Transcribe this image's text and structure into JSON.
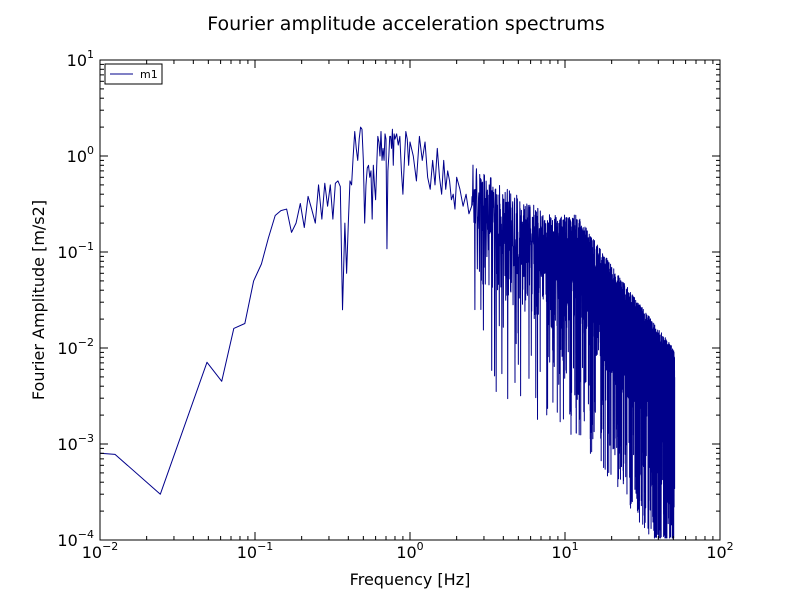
{
  "chart_data": {
    "type": "line",
    "title": "Fourier amplitude acceleration spectrums",
    "xlabel": "Frequency [Hz]",
    "ylabel": "Fourier Amplitude [m/s2]",
    "xscale": "log",
    "yscale": "log",
    "xlim": [
      0.01,
      100
    ],
    "ylim": [
      0.0001,
      10
    ],
    "x_ticks": [
      {
        "value": 0.01,
        "base": "10",
        "exp": "−2"
      },
      {
        "value": 0.1,
        "base": "10",
        "exp": "−1"
      },
      {
        "value": 1,
        "base": "10",
        "exp": "0"
      },
      {
        "value": 10,
        "base": "10",
        "exp": "1"
      },
      {
        "value": 100,
        "base": "10",
        "exp": "2"
      }
    ],
    "y_ticks": [
      {
        "value": 0.0001,
        "base": "10",
        "exp": "−4"
      },
      {
        "value": 0.001,
        "base": "10",
        "exp": "−3"
      },
      {
        "value": 0.01,
        "base": "10",
        "exp": "−2"
      },
      {
        "value": 0.1,
        "base": "10",
        "exp": "−1"
      },
      {
        "value": 1,
        "base": "10",
        "exp": "0"
      },
      {
        "value": 10,
        "base": "10",
        "exp": "1"
      }
    ],
    "grid": false,
    "legend_position": "top-left",
    "series": [
      {
        "name": "m1",
        "color": "#00008b",
        "x": [
          0.01,
          0.0125,
          0.0245,
          0.049,
          0.061,
          0.073,
          0.086,
          0.098,
          0.11,
          0.122,
          0.135,
          0.147,
          0.16,
          0.172,
          0.184,
          0.196,
          0.208,
          0.22,
          0.232,
          0.245,
          0.257,
          0.27,
          0.282,
          0.294,
          0.306,
          0.318,
          0.33,
          0.343,
          0.355,
          0.367,
          0.38,
          0.39,
          0.4,
          0.41,
          0.42,
          0.43,
          0.44,
          0.45,
          0.46,
          0.47,
          0.48,
          0.49,
          0.5,
          0.51,
          0.52,
          0.53,
          0.54,
          0.55,
          0.56,
          0.57,
          0.58,
          0.59,
          0.6,
          0.61,
          0.62,
          0.63,
          0.64,
          0.65,
          0.66,
          0.67,
          0.68,
          0.69,
          0.7,
          0.71,
          0.72,
          0.73,
          0.74,
          0.75,
          0.76,
          0.77,
          0.78,
          0.79,
          0.8,
          0.82,
          0.84,
          0.86,
          0.88,
          0.9,
          0.92,
          0.94,
          0.96,
          0.98,
          1.0,
          1.05,
          1.1,
          1.15,
          1.2,
          1.25,
          1.3,
          1.35,
          1.4,
          1.45,
          1.5,
          1.55,
          1.6,
          1.65,
          1.7,
          1.75,
          1.8,
          1.85,
          1.9,
          1.95,
          2.0,
          2.1,
          2.2,
          2.3,
          2.4,
          2.5
        ],
        "y": [
          0.0008,
          0.00078,
          0.0003,
          0.0071,
          0.0045,
          0.016,
          0.018,
          0.05,
          0.075,
          0.14,
          0.24,
          0.27,
          0.28,
          0.16,
          0.2,
          0.32,
          0.18,
          0.38,
          0.28,
          0.2,
          0.5,
          0.22,
          0.52,
          0.3,
          0.5,
          0.22,
          0.52,
          0.55,
          0.48,
          0.025,
          0.2,
          0.06,
          0.2,
          0.55,
          0.5,
          1.0,
          1.8,
          1.2,
          0.9,
          1.5,
          2.0,
          1.9,
          0.9,
          0.2,
          0.5,
          0.75,
          0.8,
          0.6,
          0.7,
          0.22,
          0.8,
          0.5,
          0.35,
          0.8,
          1.6,
          1.4,
          1.0,
          1.8,
          0.9,
          1.2,
          0.9,
          1.7,
          1.5,
          0.108,
          0.7,
          1.0,
          1.6,
          1.6,
          1.2,
          1.9,
          0.8,
          1.7,
          1.5,
          1.7,
          1.3,
          1.6,
          0.7,
          0.4,
          0.9,
          1.8,
          1.5,
          0.8,
          1.4,
          1.0,
          0.55,
          1.6,
          0.9,
          1.4,
          0.6,
          0.45,
          0.9,
          0.5,
          1.2,
          0.6,
          0.4,
          0.9,
          0.45,
          0.7,
          0.55,
          0.35,
          0.4,
          0.28,
          0.6,
          0.45,
          0.3,
          0.4,
          0.25,
          0.3
        ],
        "noisy_tail": {
          "x_start": 2.5,
          "x_end": 51,
          "anchors": [
            {
              "x": 2.5,
              "y": 0.35
            },
            {
              "x": 4,
              "y": 0.2
            },
            {
              "x": 8,
              "y": 0.1
            },
            {
              "x": 12,
              "y": 0.1
            },
            {
              "x": 20,
              "y": 0.03
            },
            {
              "x": 30,
              "y": 0.012
            },
            {
              "x": 51,
              "y": 0.004
            }
          ]
        }
      }
    ]
  }
}
